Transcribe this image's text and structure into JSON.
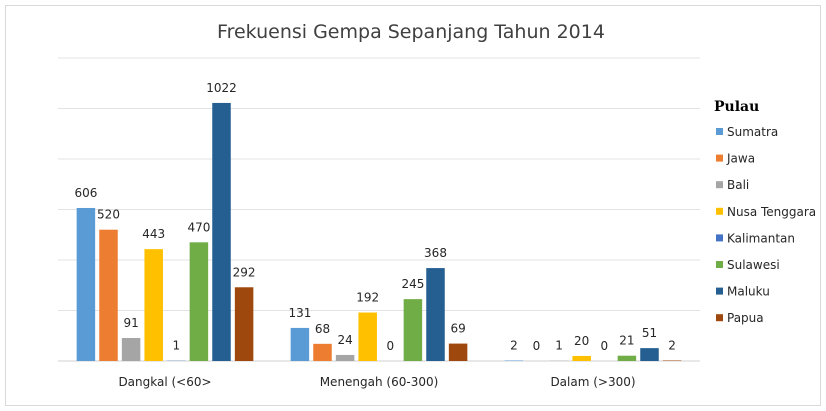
{
  "chart_data": {
    "type": "bar",
    "title": "Frekuensi Gempa Sepanjang Tahun 2014",
    "xlabel": "",
    "ylabel": "",
    "categories": [
      "Dangkal (<60>",
      "Menengah (60-300)",
      "Dalam (>300)"
    ],
    "ylim": [
      0,
      1200
    ],
    "grid": true,
    "legend_title": "Pulau",
    "legend_position": "right",
    "series": [
      {
        "name": "Sumatra",
        "color": "#5B9BD5",
        "values": [
          606,
          131,
          2
        ]
      },
      {
        "name": "Jawa",
        "color": "#ED7D31",
        "values": [
          520,
          68,
          0
        ]
      },
      {
        "name": "Bali",
        "color": "#A5A5A5",
        "values": [
          91,
          24,
          1
        ]
      },
      {
        "name": "Nusa Tenggara",
        "color": "#FFC000",
        "values": [
          443,
          192,
          20
        ]
      },
      {
        "name": "Kalimantan",
        "color": "#4472C4",
        "values": [
          1,
          0,
          0
        ]
      },
      {
        "name": "Sulawesi",
        "color": "#70AD47",
        "values": [
          470,
          245,
          21
        ]
      },
      {
        "name": "Maluku",
        "color": "#255E91",
        "values": [
          1022,
          368,
          51
        ]
      },
      {
        "name": "Papua",
        "color": "#9E480E",
        "values": [
          292,
          69,
          2
        ]
      }
    ]
  }
}
